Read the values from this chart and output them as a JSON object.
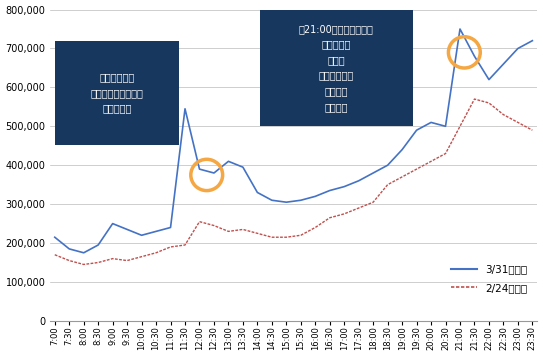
{
  "ylim": [
    0,
    800000
  ],
  "yticks": [
    0,
    100000,
    200000,
    300000,
    400000,
    500000,
    600000,
    700000,
    800000
  ],
  "line1_color": "#4472C4",
  "line2_color": "#C0504D",
  "line1_label": "3/31（月）",
  "line2_label": "2/24（月）",
  "annotation1_text": "「いいとも」\n「いいとも最終回」\n「たけし」",
  "annotation2_text": "「21:00ホットワード」\nとんねるず\nさんま\nダウンタウン\nウンナン\nいいとも",
  "bg_color": "#FFFFFF",
  "box_color": "#17375E",
  "box_text_color": "#FFFFFF",
  "circle_color": "#F4A742",
  "grid_color": "#BBBBBB",
  "x_labels": [
    "7:00",
    "7:30",
    "8:00",
    "8:30",
    "9:00",
    "9:30",
    "10:00",
    "10:30",
    "11:00",
    "11:30",
    "12:00",
    "12:30",
    "13:00",
    "13:30",
    "14:00",
    "14:30",
    "15:00",
    "15:30",
    "16:00",
    "16:30",
    "17:00",
    "17:30",
    "18:00",
    "18:30",
    "19:00",
    "19:30",
    "20:00",
    "20:30",
    "21:00",
    "21:30",
    "22:00",
    "22:30",
    "23:00",
    "23:30"
  ],
  "line1_values": [
    215000,
    185000,
    175000,
    195000,
    250000,
    235000,
    220000,
    230000,
    240000,
    545000,
    390000,
    380000,
    410000,
    395000,
    330000,
    310000,
    305000,
    310000,
    320000,
    335000,
    345000,
    360000,
    380000,
    400000,
    440000,
    490000,
    510000,
    500000,
    750000,
    680000,
    620000,
    660000,
    700000,
    720000
  ],
  "line2_values": [
    170000,
    155000,
    145000,
    150000,
    160000,
    155000,
    165000,
    175000,
    190000,
    195000,
    255000,
    245000,
    230000,
    235000,
    225000,
    215000,
    215000,
    220000,
    240000,
    265000,
    275000,
    290000,
    305000,
    350000,
    370000,
    390000,
    410000,
    430000,
    500000,
    570000,
    560000,
    530000,
    510000,
    490000
  ]
}
